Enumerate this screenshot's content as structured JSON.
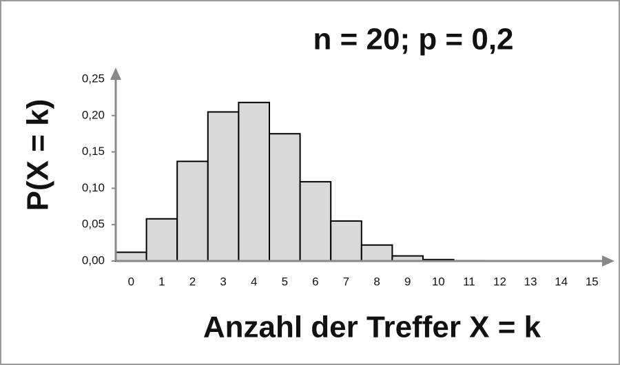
{
  "chart_data": {
    "type": "bar",
    "title": "n = 20; p = 0,2",
    "x_label": "Anzahl der Treffer X = k",
    "y_label": "P(X = k)",
    "categories": [
      "0",
      "1",
      "2",
      "3",
      "4",
      "5",
      "6",
      "7",
      "8",
      "9",
      "10",
      "11",
      "12",
      "13",
      "14",
      "15"
    ],
    "values": [
      0.012,
      0.058,
      0.137,
      0.205,
      0.218,
      0.175,
      0.109,
      0.055,
      0.022,
      0.007,
      0.002,
      0.0005,
      0.0001,
      0,
      0,
      0
    ],
    "color": "#d9d9d9",
    "ylim": [
      0,
      0.25
    ],
    "yticks": [
      {
        "value": 0,
        "label": "0,00"
      },
      {
        "value": 0.05,
        "label": "0,05"
      },
      {
        "value": 0.1,
        "label": "0,10"
      },
      {
        "value": 0.15,
        "label": "0,15"
      },
      {
        "value": 0.2,
        "label": "0,20"
      },
      {
        "value": 0.25,
        "label": "0,25"
      }
    ],
    "grid": false
  }
}
